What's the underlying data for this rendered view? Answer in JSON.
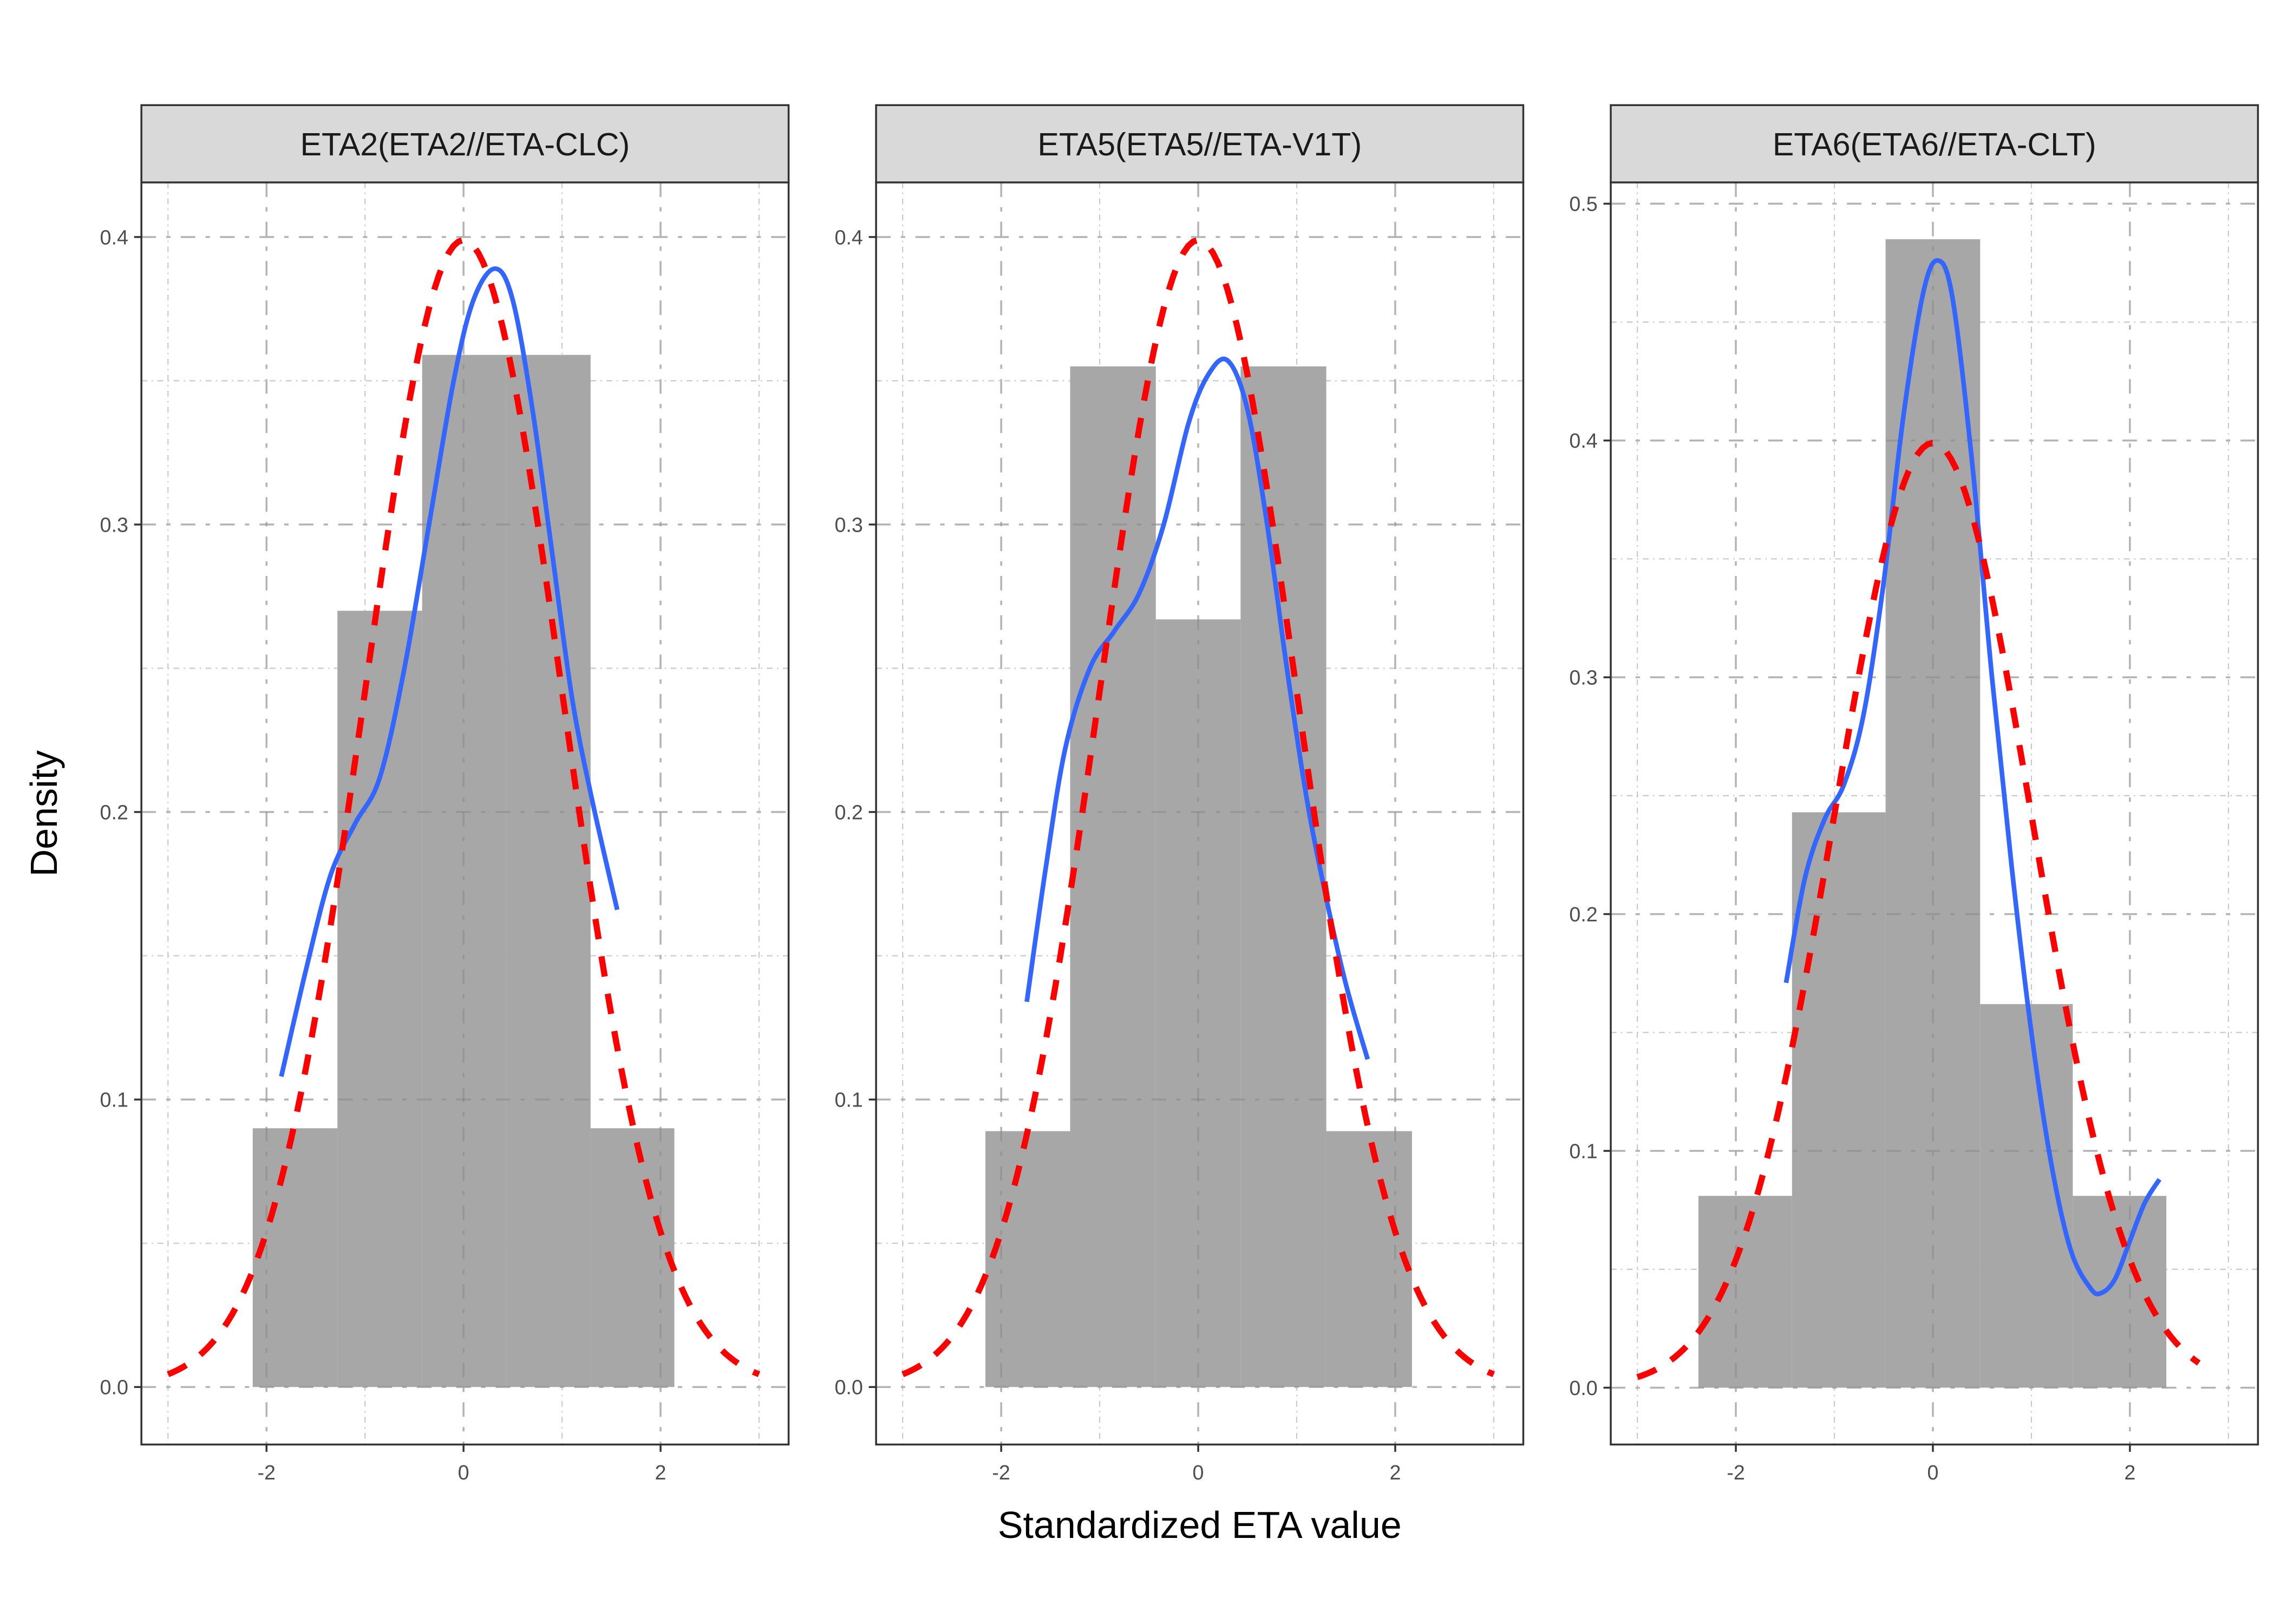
{
  "chart_data": {
    "type": "histogram-density-facets",
    "xlabel": "Standardized ETA value",
    "ylabel": "Density",
    "grid": true,
    "legend": "none",
    "colors": {
      "bars": "#a6a6a6",
      "kde": "#3366ff",
      "normal": "#ff0000",
      "strip_bg": "#d9d9d9",
      "border": "#333333",
      "grid": "#c8c8c8"
    },
    "series_description": {
      "bars": "Histogram (density)",
      "kde": "Kernel density estimate (solid blue)",
      "normal": "Standard normal N(0,1) reference (dashed red)"
    },
    "panels": [
      {
        "title": "ETA2(ETA2//ETA-CLC)",
        "xlim": [
          -3.27,
          3.3
        ],
        "ylim": [
          -0.02,
          0.419
        ],
        "x_ticks": [
          -2,
          0,
          2
        ],
        "x_tick_labels": [
          "-2",
          "0",
          "2"
        ],
        "y_ticks": [
          0.0,
          0.1,
          0.2,
          0.3,
          0.4
        ],
        "y_tick_labels": [
          "0.0",
          "0.1",
          "0.2",
          "0.3",
          "0.4"
        ],
        "bins": [
          {
            "x0": -2.14,
            "x1": -1.28,
            "density": 0.09
          },
          {
            "x0": -1.28,
            "x1": -0.42,
            "density": 0.27
          },
          {
            "x0": -0.42,
            "x1": 0.43,
            "density": 0.359
          },
          {
            "x0": 0.43,
            "x1": 1.29,
            "density": 0.359
          },
          {
            "x0": 1.29,
            "x1": 2.14,
            "density": 0.09
          }
        ],
        "kde": [
          [
            -1.85,
            0.108
          ],
          [
            -1.6,
            0.145
          ],
          [
            -1.35,
            0.178
          ],
          [
            -1.1,
            0.196
          ],
          [
            -0.85,
            0.212
          ],
          [
            -0.6,
            0.25
          ],
          [
            -0.35,
            0.3
          ],
          [
            -0.1,
            0.35
          ],
          [
            0.1,
            0.378
          ],
          [
            0.32,
            0.389
          ],
          [
            0.5,
            0.378
          ],
          [
            0.7,
            0.34
          ],
          [
            0.9,
            0.29
          ],
          [
            1.1,
            0.24
          ],
          [
            1.3,
            0.205
          ],
          [
            1.56,
            0.166
          ]
        ],
        "normal_range": [
          -3.0,
          3.0
        ]
      },
      {
        "title": "ETA5(ETA5//ETA-V1T)",
        "xlim": [
          -3.27,
          3.3
        ],
        "ylim": [
          -0.02,
          0.419
        ],
        "x_ticks": [
          -2,
          0,
          2
        ],
        "x_tick_labels": [
          "-2",
          "0",
          "2"
        ],
        "y_ticks": [
          0.0,
          0.1,
          0.2,
          0.3,
          0.4
        ],
        "y_tick_labels": [
          "0.0",
          "0.1",
          "0.2",
          "0.3",
          "0.4"
        ],
        "bins": [
          {
            "x0": -2.16,
            "x1": -1.3,
            "density": 0.089
          },
          {
            "x0": -1.3,
            "x1": -0.43,
            "density": 0.355
          },
          {
            "x0": -0.43,
            "x1": 0.43,
            "density": 0.267
          },
          {
            "x0": 0.43,
            "x1": 1.3,
            "density": 0.355
          },
          {
            "x0": 1.3,
            "x1": 2.17,
            "density": 0.089
          }
        ],
        "kde": [
          [
            -1.74,
            0.134
          ],
          [
            -1.55,
            0.18
          ],
          [
            -1.35,
            0.222
          ],
          [
            -1.1,
            0.25
          ],
          [
            -0.85,
            0.263
          ],
          [
            -0.6,
            0.276
          ],
          [
            -0.35,
            0.3
          ],
          [
            -0.1,
            0.335
          ],
          [
            0.1,
            0.352
          ],
          [
            0.3,
            0.357
          ],
          [
            0.5,
            0.34
          ],
          [
            0.7,
            0.3
          ],
          [
            0.9,
            0.25
          ],
          [
            1.1,
            0.205
          ],
          [
            1.3,
            0.17
          ],
          [
            1.5,
            0.14
          ],
          [
            1.72,
            0.114
          ]
        ],
        "normal_range": [
          -3.0,
          3.0
        ]
      },
      {
        "title": "ETA6(ETA6//ETA-CLT)",
        "xlim": [
          -3.27,
          3.3
        ],
        "ylim": [
          -0.024,
          0.509
        ],
        "x_ticks": [
          -2,
          0,
          2
        ],
        "x_tick_labels": [
          "-2",
          "0",
          "2"
        ],
        "y_ticks": [
          0.0,
          0.1,
          0.2,
          0.3,
          0.4,
          0.5
        ],
        "y_tick_labels": [
          "0.0",
          "0.1",
          "0.2",
          "0.3",
          "0.4",
          "0.5"
        ],
        "bins": [
          {
            "x0": -2.38,
            "x1": -1.43,
            "density": 0.081
          },
          {
            "x0": -1.43,
            "x1": -0.48,
            "density": 0.243
          },
          {
            "x0": -0.48,
            "x1": 0.48,
            "density": 0.485
          },
          {
            "x0": 0.48,
            "x1": 1.42,
            "density": 0.162
          },
          {
            "x0": 1.42,
            "x1": 2.37,
            "density": 0.081
          }
        ],
        "kde": [
          [
            -1.49,
            0.171
          ],
          [
            -1.3,
            0.215
          ],
          [
            -1.1,
            0.24
          ],
          [
            -0.9,
            0.255
          ],
          [
            -0.7,
            0.285
          ],
          [
            -0.5,
            0.34
          ],
          [
            -0.3,
            0.41
          ],
          [
            -0.1,
            0.462
          ],
          [
            0.05,
            0.476
          ],
          [
            0.2,
            0.46
          ],
          [
            0.4,
            0.39
          ],
          [
            0.6,
            0.3
          ],
          [
            0.8,
            0.22
          ],
          [
            1.0,
            0.15
          ],
          [
            1.2,
            0.095
          ],
          [
            1.4,
            0.058
          ],
          [
            1.6,
            0.042
          ],
          [
            1.71,
            0.04
          ],
          [
            1.85,
            0.046
          ],
          [
            2.0,
            0.062
          ],
          [
            2.15,
            0.078
          ],
          [
            2.3,
            0.088
          ]
        ],
        "normal_range": [
          -3.0,
          2.7
        ]
      }
    ]
  }
}
